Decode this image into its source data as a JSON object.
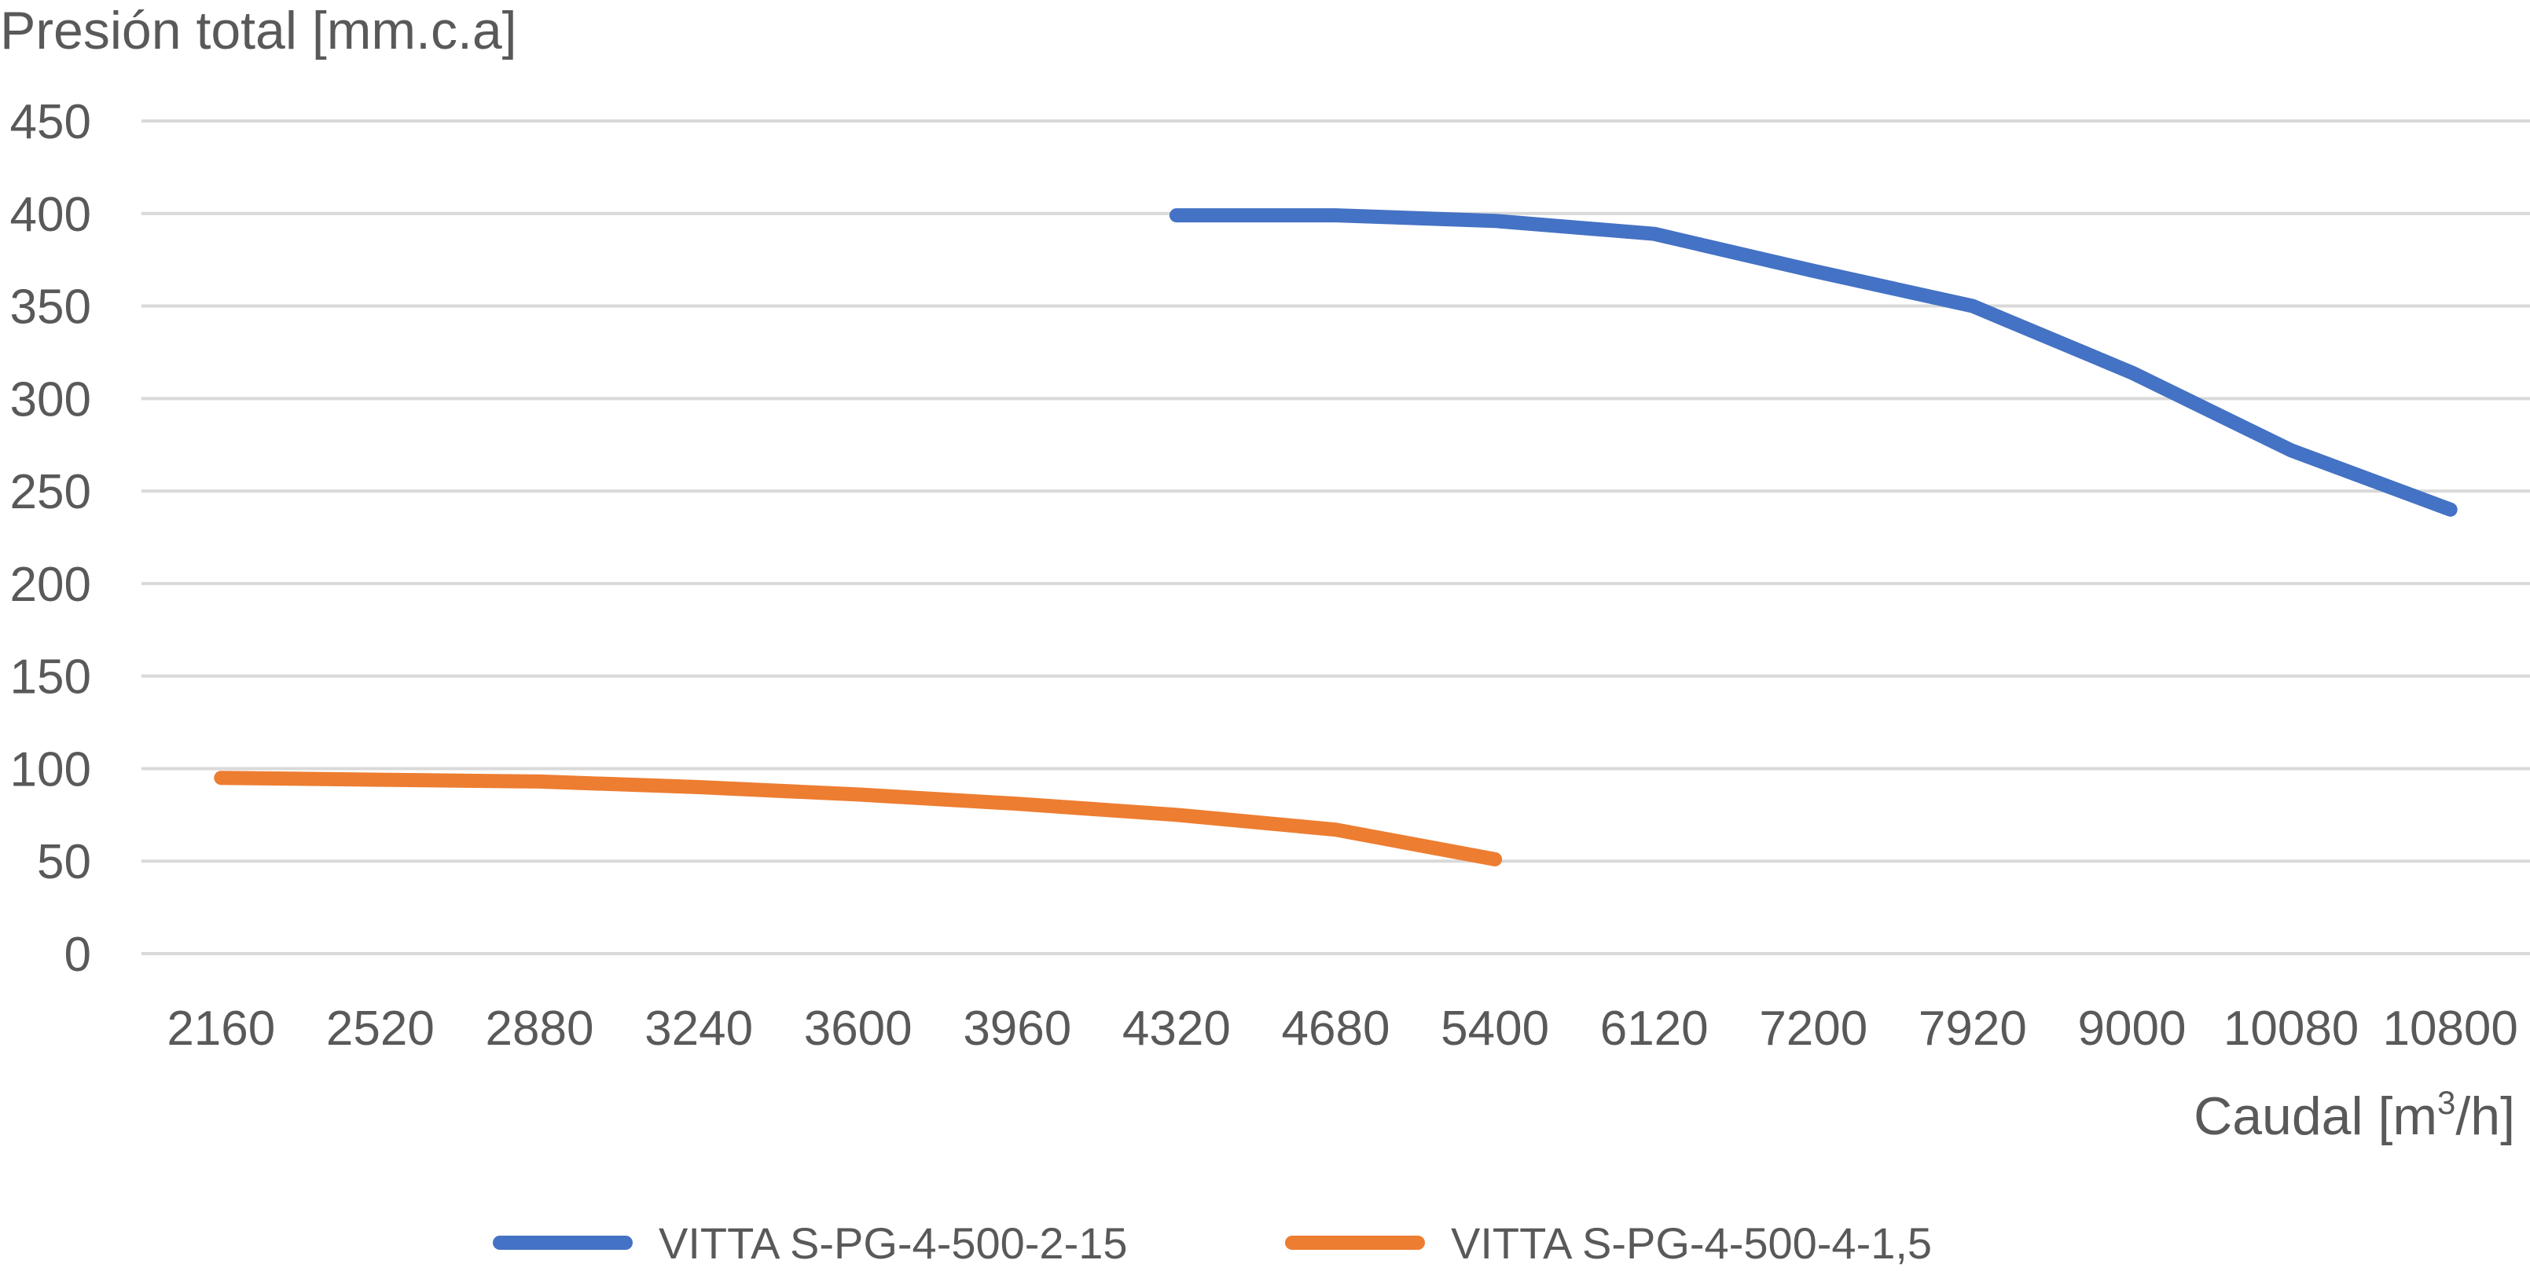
{
  "chart_data": {
    "type": "line",
    "ylabel": "Presión total [mm.c.a]",
    "xlabel": "Caudal [m³/h]",
    "xlabel_parts": {
      "before": "Caudal [m",
      "sup": "3",
      "after": "/h]"
    },
    "categories": [
      "2160",
      "2520",
      "2880",
      "3240",
      "3600",
      "3960",
      "4320",
      "4680",
      "5400",
      "6120",
      "7200",
      "7920",
      "9000",
      "10080",
      "10800"
    ],
    "ylim": [
      0,
      450
    ],
    "yticks": [
      "0",
      "50",
      "100",
      "150",
      "200",
      "250",
      "300",
      "350",
      "400",
      "450"
    ],
    "grid": true,
    "legend_position": "bottom",
    "series": [
      {
        "name": "VITTA S-PG-4-500-2-15",
        "color": "#4472C4",
        "values": [
          null,
          null,
          null,
          null,
          null,
          null,
          399,
          399,
          396,
          389,
          369,
          350,
          314,
          272,
          240
        ]
      },
      {
        "name": "VITTA S-PG-4-500-4-1,5",
        "color": "#ED7D31",
        "values": [
          95,
          94,
          93,
          90,
          86,
          81,
          75,
          67,
          51,
          null,
          null,
          null,
          null,
          null,
          null
        ]
      }
    ]
  }
}
